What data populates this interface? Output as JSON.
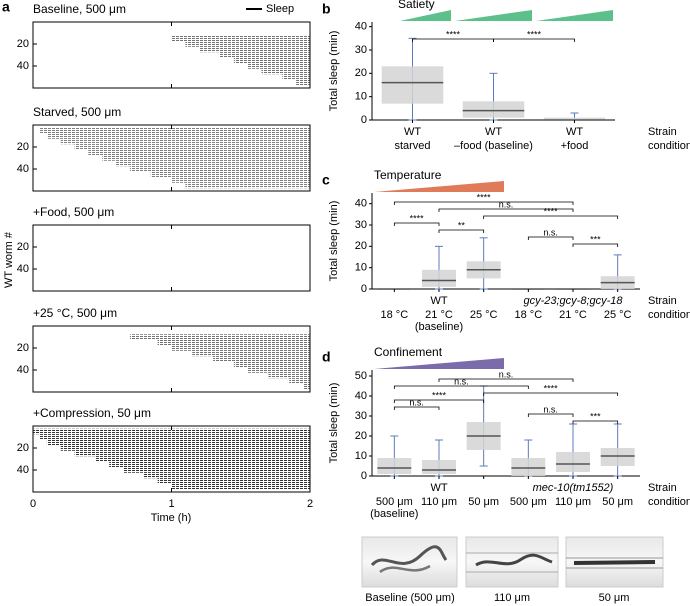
{
  "panel_a": {
    "label": "a",
    "legend": "Sleep",
    "x_label": "Time (h)",
    "y_label": "WT worm #"
  },
  "chart_data": [
    {
      "type": "raster",
      "title": "Baseline, 500 μm",
      "title_color": "#000000",
      "xlim": [
        0,
        2
      ],
      "xticks": [
        0,
        1,
        2
      ],
      "ylim": [
        0,
        60
      ],
      "yticks": [
        20,
        40
      ],
      "rows": [
        5,
        10,
        15,
        20,
        25,
        30,
        35,
        40,
        45,
        50,
        55
      ],
      "onset": [
        null,
        null,
        1.0,
        1.1,
        1.2,
        1.35,
        1.45,
        1.55,
        1.65,
        1.8,
        1.9
      ],
      "density": 0.55
    },
    {
      "type": "raster",
      "title": "Starved, 500 μm",
      "title_color": "#5cc08a",
      "xlim": [
        0,
        2
      ],
      "xticks": [
        0,
        1,
        2
      ],
      "ylim": [
        0,
        60
      ],
      "yticks": [
        20,
        40
      ],
      "rows": [
        5,
        10,
        15,
        20,
        25,
        30,
        35,
        40,
        45,
        50,
        55
      ],
      "onset": [
        0.05,
        0.1,
        0.2,
        0.3,
        0.4,
        0.5,
        0.6,
        0.7,
        0.85,
        1.0,
        1.1
      ],
      "density": 0.5
    },
    {
      "type": "raster",
      "title": "+Food, 500 μm",
      "title_color": "#5cc08a",
      "xlim": [
        0,
        2
      ],
      "xticks": [
        0,
        1,
        2
      ],
      "ylim": [
        0,
        60
      ],
      "yticks": [
        20,
        40
      ],
      "rows": [
        5,
        10,
        15,
        20,
        25,
        30,
        35,
        40,
        45,
        50,
        55
      ],
      "onset": [
        null,
        null,
        null,
        null,
        null,
        null,
        null,
        null,
        null,
        null,
        null
      ],
      "density": 0.5
    },
    {
      "type": "raster",
      "title": "+25 °C, 500 μm",
      "title_color": "#e07b5a",
      "xlim": [
        0,
        2
      ],
      "xticks": [
        0,
        1,
        2
      ],
      "ylim": [
        0,
        60
      ],
      "yticks": [
        20,
        40
      ],
      "rows": [
        5,
        10,
        15,
        20,
        25,
        30,
        35,
        40,
        45,
        50,
        55
      ],
      "onset": [
        null,
        0.7,
        0.9,
        1.0,
        1.15,
        1.3,
        1.45,
        1.55,
        1.7,
        1.85,
        1.95
      ],
      "density": 0.55
    },
    {
      "type": "raster",
      "title": "+Compression, 50 μm",
      "title_color": "#7b6bab",
      "xlim": [
        0,
        2
      ],
      "xticks": [
        0,
        1,
        2
      ],
      "ylim": [
        0,
        60
      ],
      "yticks": [
        20,
        40
      ],
      "rows": [
        5,
        10,
        15,
        20,
        25,
        30,
        35,
        40,
        45,
        50,
        55
      ],
      "onset": [
        0.0,
        0.05,
        0.1,
        0.2,
        0.3,
        0.45,
        0.55,
        0.65,
        0.8,
        0.9,
        1.0
      ],
      "density": 0.8
    },
    {
      "type": "box",
      "panel": "b",
      "header": {
        "label": "Satiety",
        "color": "#5cc08a"
      },
      "y_label": "Total sleep (min)",
      "ylim": [
        0,
        42
      ],
      "yticks": [
        0,
        10,
        20,
        30,
        40
      ],
      "strains": [
        {
          "name": "WT",
          "italic": false
        },
        {
          "name": "WT",
          "italic": false
        },
        {
          "name": "WT",
          "italic": false
        }
      ],
      "conditions": [
        "starved",
        "–food (baseline)",
        "+food"
      ],
      "condition_notes": [
        null,
        null,
        null
      ],
      "row_labels": [
        "Strain",
        "condition"
      ],
      "whisker_low": [
        0,
        0,
        0
      ],
      "q1": [
        7,
        1,
        0
      ],
      "median": [
        16,
        4,
        0
      ],
      "q3": [
        23,
        8,
        1
      ],
      "whisker_high": [
        35,
        20,
        3
      ],
      "box_color": "#d4d4d4",
      "point_color": "#5b7bc0",
      "significance": [
        {
          "pair": [
            0,
            1
          ],
          "label": "****"
        },
        {
          "pair": [
            1,
            2
          ],
          "label": "****"
        }
      ]
    },
    {
      "type": "box",
      "panel": "c",
      "header": {
        "label": "Temperature",
        "color": "#e07b5a"
      },
      "y_label": "Total sleep (min)",
      "ylim": [
        0,
        45
      ],
      "yticks": [
        0,
        10,
        20,
        30,
        40
      ],
      "strains": [
        {
          "name": "WT",
          "italic": false
        },
        {
          "name": "gcy-23;gcy-8;gcy-18",
          "italic": true
        }
      ],
      "conditions": [
        "18 °C",
        "21 °C",
        "25 °C",
        "18 °C",
        "21 °C",
        "25 °C"
      ],
      "condition_notes": [
        null,
        "(baseline)",
        null,
        null,
        null,
        null
      ],
      "row_labels": [
        "Strain",
        "condition"
      ],
      "whisker_low": [
        0,
        0,
        0,
        0,
        0,
        0
      ],
      "q1": [
        0,
        1,
        5,
        0,
        0,
        0
      ],
      "median": [
        0,
        4,
        9,
        0,
        0,
        3
      ],
      "q3": [
        0,
        9,
        13,
        0,
        0,
        6
      ],
      "whisker_high": [
        0,
        20,
        24,
        0,
        0,
        16
      ],
      "box_color": "#d4d4d4",
      "point_color": "#5b7bc0",
      "significance": [
        {
          "pair": [
            0,
            1
          ],
          "label": "****"
        },
        {
          "pair": [
            1,
            2
          ],
          "label": "**"
        },
        {
          "pair": [
            3,
            4
          ],
          "label": "n.s."
        },
        {
          "pair": [
            4,
            5
          ],
          "label": "***"
        },
        {
          "pair": [
            1,
            4
          ],
          "label": "n.s."
        },
        {
          "pair": [
            0,
            4
          ],
          "label": "****"
        },
        {
          "pair": [
            2,
            5
          ],
          "label": "****"
        }
      ]
    },
    {
      "type": "box",
      "panel": "d",
      "header": {
        "label": "Confinement",
        "color": "#7b6bab"
      },
      "y_label": "Total sleep (min)",
      "ylim": [
        0,
        53
      ],
      "yticks": [
        0,
        10,
        20,
        30,
        40,
        50
      ],
      "strains": [
        {
          "name": "WT",
          "italic": false
        },
        {
          "name": "mec-10(tm1552)",
          "italic": true
        }
      ],
      "conditions": [
        "500 μm",
        "110 μm",
        "50 μm",
        "500 μm",
        "110 μm",
        "50 μm"
      ],
      "condition_notes": [
        "(baseline)",
        null,
        null,
        null,
        null,
        null
      ],
      "row_labels": [
        "Strain",
        "condition"
      ],
      "whisker_low": [
        0,
        0,
        5,
        0,
        0,
        0
      ],
      "q1": [
        1,
        1,
        13,
        0,
        2,
        5
      ],
      "median": [
        4,
        3,
        20,
        4,
        6,
        10
      ],
      "q3": [
        9,
        8,
        27,
        9,
        12,
        14
      ],
      "whisker_high": [
        20,
        18,
        45,
        18,
        26,
        26
      ],
      "box_color": "#d4d4d4",
      "point_color": "#5b7bc0",
      "significance": [
        {
          "pair": [
            0,
            1
          ],
          "label": "n.s."
        },
        {
          "pair": [
            0,
            2
          ],
          "label": "****"
        },
        {
          "pair": [
            3,
            4
          ],
          "label": "n.s."
        },
        {
          "pair": [
            4,
            5
          ],
          "label": "***"
        },
        {
          "pair": [
            1,
            4
          ],
          "label": "n.s."
        },
        {
          "pair": [
            0,
            3
          ],
          "label": "n.s."
        },
        {
          "pair": [
            2,
            5
          ],
          "label": "****"
        }
      ]
    }
  ],
  "photos": [
    {
      "caption": "Baseline (500 μm)"
    },
    {
      "caption": "110 μm"
    },
    {
      "caption": "50 μm"
    }
  ]
}
